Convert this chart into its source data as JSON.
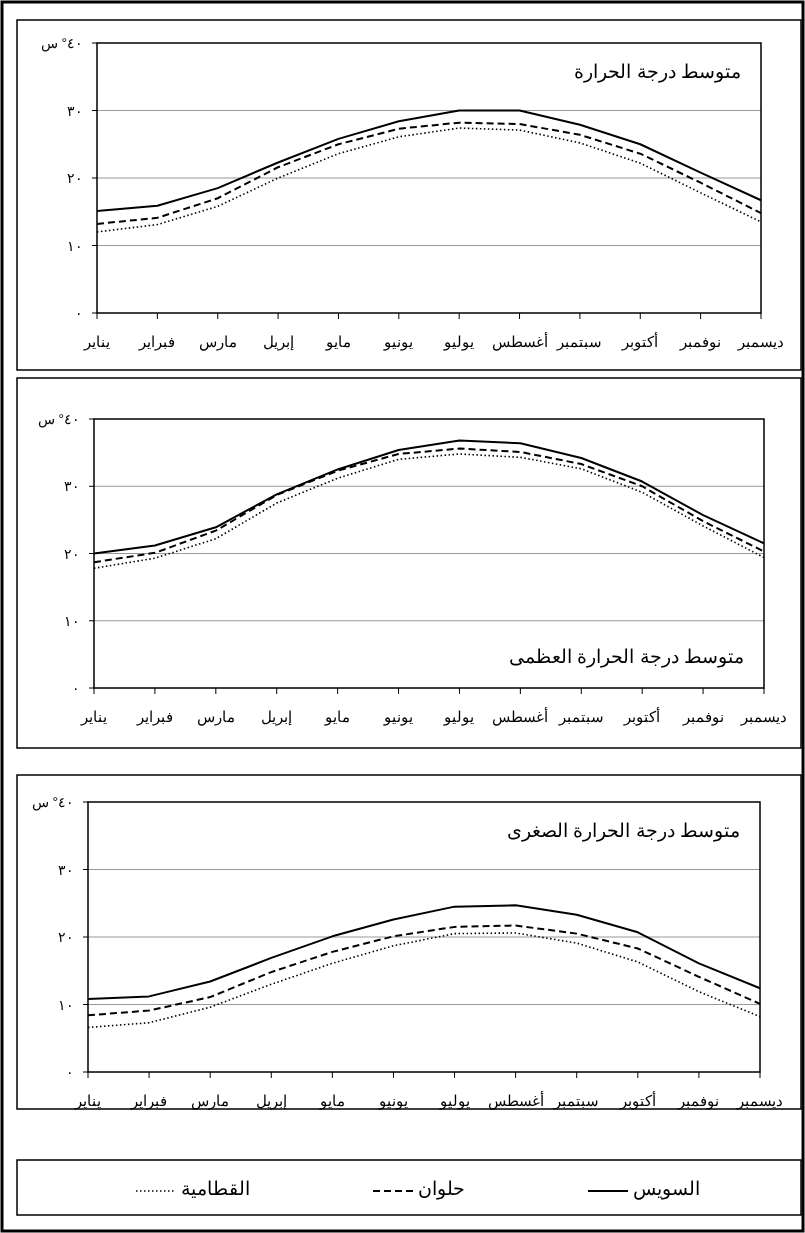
{
  "chart_data": [
    {
      "type": "line",
      "title": "متوسط درجة الحرارة",
      "categories": [
        "يناير",
        "فبراير",
        "مارس",
        "إبريل",
        "مايو",
        "يونيو",
        "يوليو",
        "أغسطس",
        "سبتمبر",
        "أكتوبر",
        "نوفمبر",
        "ديسمبر"
      ],
      "ylim": [
        0,
        40
      ],
      "yticks": [
        {
          "value": 0,
          "label": "٠"
        },
        {
          "value": 10,
          "label": "١٠"
        },
        {
          "value": 20,
          "label": "٢٠"
        },
        {
          "value": 30,
          "label": "٣٠"
        },
        {
          "value": 40,
          "label": "٤٠° س"
        }
      ],
      "grid": "y",
      "marker": "none",
      "series": [
        {
          "color": "#000000",
          "line_style": "solid",
          "values": [
            15.1,
            15.9,
            18.5,
            22.3,
            25.8,
            28.4,
            30.0,
            30.0,
            27.9,
            25.0,
            20.8,
            16.7
          ]
        },
        {
          "color": "#000000",
          "line_style": "dashed",
          "values": [
            13.2,
            14.1,
            17.0,
            21.6,
            25.0,
            27.3,
            28.2,
            28.0,
            26.4,
            23.6,
            19.3,
            14.8
          ]
        },
        {
          "color": "#000000",
          "line_style": "dotted",
          "values": [
            12.0,
            13.1,
            15.8,
            20.0,
            23.6,
            26.1,
            27.4,
            27.1,
            25.2,
            22.2,
            17.8,
            13.5
          ]
        }
      ]
    },
    {
      "type": "line",
      "title": "متوسط درجة الحرارة العظمى",
      "categories": [
        "يناير",
        "فبراير",
        "مارس",
        "إبريل",
        "مايو",
        "يونيو",
        "يوليو",
        "أغسطس",
        "سبتمبر",
        "أكتوبر",
        "نوفمبر",
        "ديسمبر"
      ],
      "ylim": [
        0,
        40
      ],
      "yticks": [
        {
          "value": 0,
          "label": "٠"
        },
        {
          "value": 10,
          "label": "١٠"
        },
        {
          "value": 20,
          "label": "٢٠"
        },
        {
          "value": 30,
          "label": "٣٠"
        },
        {
          "value": 40,
          "label": "٤٠° س"
        }
      ],
      "grid": "y",
      "marker": "none",
      "series": [
        {
          "color": "#000000",
          "line_style": "solid",
          "values": [
            20.0,
            21.2,
            23.9,
            28.8,
            32.5,
            35.4,
            36.8,
            36.4,
            34.2,
            30.7,
            25.7,
            21.5
          ]
        },
        {
          "color": "#000000",
          "line_style": "dashed",
          "values": [
            18.7,
            20.1,
            23.4,
            28.7,
            32.3,
            34.8,
            35.6,
            35.1,
            33.3,
            30.0,
            24.8,
            20.3
          ]
        },
        {
          "color": "#000000",
          "line_style": "dotted",
          "values": [
            17.8,
            19.3,
            22.2,
            27.5,
            31.2,
            34.0,
            34.8,
            34.3,
            32.6,
            29.1,
            24.1,
            19.4
          ]
        }
      ]
    },
    {
      "type": "line",
      "title": "متوسط درجة الحرارة الصغرى",
      "categories": [
        "يناير",
        "فبراير",
        "مارس",
        "إبريل",
        "مايو",
        "يونيو",
        "يوليو",
        "أغسطس",
        "سبتمبر",
        "أكتوبر",
        "نوفمبر",
        "ديسمبر"
      ],
      "ylim": [
        0,
        40
      ],
      "yticks": [
        {
          "value": 0,
          "label": "٠"
        },
        {
          "value": 10,
          "label": "١٠"
        },
        {
          "value": 20,
          "label": "٢٠"
        },
        {
          "value": 30,
          "label": "٣٠"
        },
        {
          "value": 40,
          "label": "٤٠° س"
        }
      ],
      "grid": "y",
      "marker": "none",
      "legend": "bottom",
      "series": [
        {
          "name": "السويس",
          "color": "#000000",
          "line_style": "solid",
          "values": [
            10.8,
            11.2,
            13.4,
            16.9,
            20.1,
            22.6,
            24.5,
            24.7,
            23.3,
            20.7,
            16.1,
            12.4
          ]
        },
        {
          "name": "حلوان",
          "color": "#000000",
          "line_style": "dashed",
          "values": [
            8.4,
            9.1,
            11.1,
            14.8,
            17.8,
            20.1,
            21.5,
            21.7,
            20.5,
            18.3,
            14.1,
            10.1
          ]
        },
        {
          "name": "القطامية",
          "color": "#000000",
          "line_style": "dotted",
          "values": [
            6.6,
            7.3,
            9.6,
            13.0,
            16.1,
            18.7,
            20.5,
            20.6,
            19.1,
            16.3,
            11.9,
            8.2
          ]
        }
      ]
    }
  ]
}
